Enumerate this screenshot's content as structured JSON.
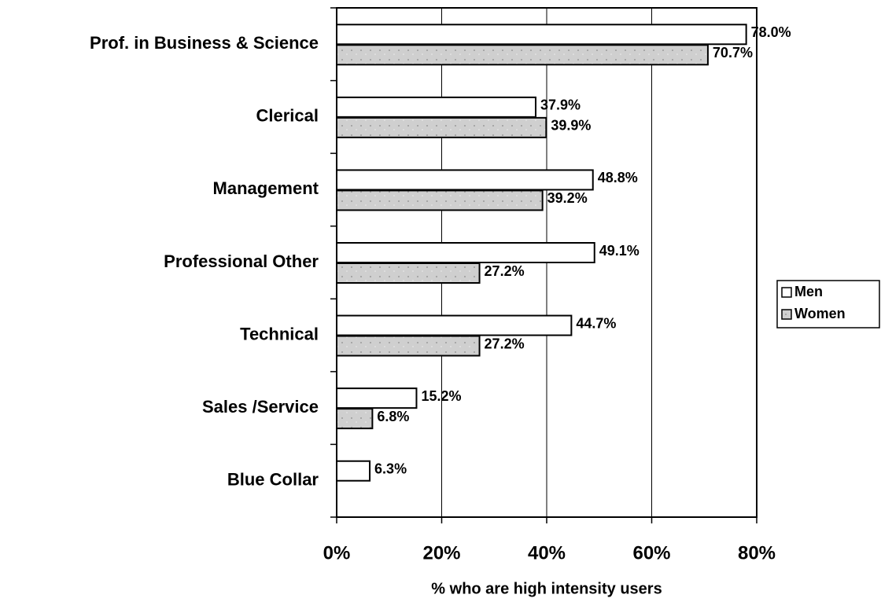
{
  "chart_data": {
    "type": "hbar",
    "xlabel": "% who are high intensity users",
    "categories": [
      "Prof. in Business & Science",
      "Clerical",
      "Management",
      "Professional Other",
      "Technical",
      "Sales /Service",
      "Blue Collar"
    ],
    "series": [
      {
        "name": "Men",
        "color": "#ffffff",
        "values": [
          78.0,
          37.9,
          48.8,
          49.1,
          44.7,
          15.2,
          6.3
        ],
        "value_labels": [
          "78.0%",
          "37.9%",
          "48.8%",
          "49.1%",
          "44.7%",
          "15.2%",
          "6.3%"
        ]
      },
      {
        "name": "Women",
        "color": "#cfcfcf",
        "values": [
          70.7,
          39.9,
          39.2,
          27.2,
          27.2,
          6.8,
          null
        ],
        "value_labels": [
          "70.7%",
          "39.9%",
          "39.2%",
          "27.2%",
          "27.2%",
          "6.8%",
          null
        ]
      }
    ],
    "xlim": [
      0,
      80
    ],
    "xticks": [
      {
        "value": 0,
        "label": "0%"
      },
      {
        "value": 20,
        "label": "20%"
      },
      {
        "value": 40,
        "label": "40%"
      },
      {
        "value": 60,
        "label": "60%"
      },
      {
        "value": 80,
        "label": "80%"
      }
    ],
    "grid": true,
    "legend": "right"
  }
}
